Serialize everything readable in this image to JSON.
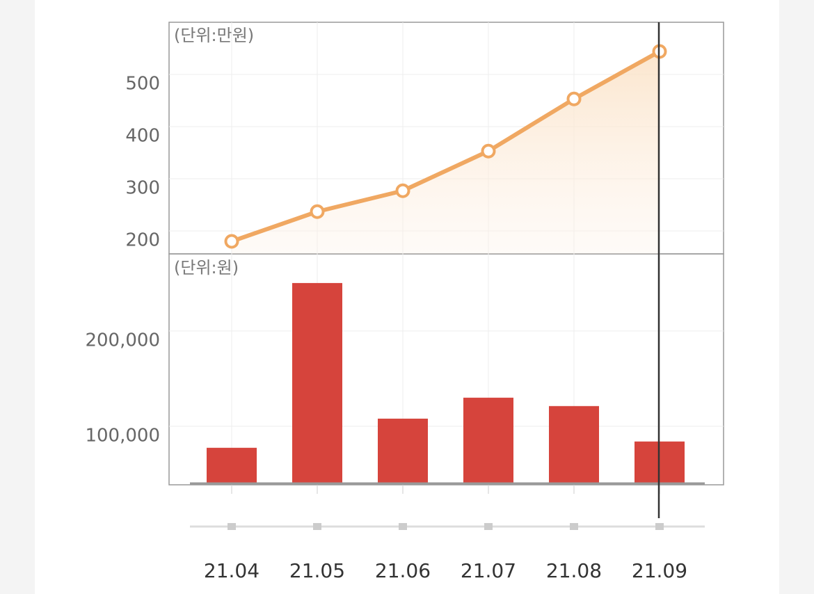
{
  "chart_data": [
    {
      "type": "line",
      "unit_label": "(단위:만원)",
      "values": [
        180,
        237,
        277,
        353,
        453,
        544
      ],
      "color": "#f0a862",
      "ylim": [
        156,
        600
      ],
      "yticks": [
        200,
        300,
        400,
        500
      ],
      "grid": true
    },
    {
      "type": "bar",
      "unit_label": "(단위:원)",
      "categories": [
        "21.04",
        "21.05",
        "21.06",
        "21.07",
        "21.08",
        "21.09"
      ],
      "values": [
        77400,
        250400,
        108000,
        130000,
        121200,
        84000
      ],
      "color": "#d6443c",
      "ylim": [
        40000,
        281000
      ],
      "yticks": [
        {
          "value": 100000,
          "label": "100,000"
        },
        {
          "value": 200000,
          "label": "200,000"
        }
      ],
      "grid": true
    }
  ]
}
